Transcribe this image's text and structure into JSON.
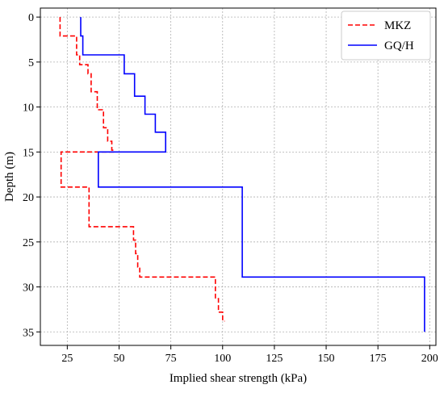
{
  "chart_data": {
    "type": "line",
    "title": "",
    "xlabel": "Implied shear strength (kPa)",
    "ylabel": "Depth (m)",
    "xlim": [
      12,
      203
    ],
    "ylim": [
      -1.0,
      36.5
    ],
    "y_inverted": true,
    "xticks": [
      25,
      50,
      75,
      100,
      125,
      150,
      175,
      200
    ],
    "yticks": [
      0,
      5,
      10,
      15,
      20,
      25,
      30,
      35
    ],
    "grid": true,
    "legend_position": "top-right",
    "series": [
      {
        "name": "MKZ",
        "color": "#ff0000",
        "style": "dashed",
        "x": [
          21.5,
          21.5,
          29.5,
          29.5,
          31,
          31,
          35,
          35,
          36.5,
          36.5,
          39.5,
          39.5,
          42.5,
          42.5,
          44.5,
          44.5,
          46.5,
          46.5,
          47.5,
          47.5,
          22,
          22,
          35.5,
          35.5,
          57,
          57,
          58,
          58,
          59,
          59,
          60,
          60,
          96.5,
          96.5,
          98,
          98,
          100,
          100,
          101
        ],
        "y": [
          0,
          2.1,
          2.1,
          4.2,
          4.2,
          5.3,
          5.3,
          6.3,
          6.3,
          8.3,
          8.3,
          10.3,
          10.3,
          12.3,
          12.3,
          13.8,
          13.8,
          14.8,
          14.8,
          15.0,
          15.0,
          18.9,
          18.9,
          23.3,
          23.3,
          24.8,
          24.8,
          26.3,
          26.3,
          27.8,
          27.8,
          28.9,
          28.9,
          31.3,
          31.3,
          32.8,
          32.8,
          33.8,
          33.8
        ]
      },
      {
        "name": "GQ/H",
        "color": "#0000ff",
        "style": "solid",
        "x": [
          31.5,
          31.5,
          32.5,
          32.5,
          33.5,
          33.5,
          52.5,
          52.5,
          57.5,
          57.5,
          62.5,
          62.5,
          67.5,
          67.5,
          72.5,
          72.5,
          40,
          40,
          109.5,
          109.5,
          197.5,
          197.5
        ],
        "y": [
          0,
          2.1,
          2.1,
          4.2,
          4.2,
          4.2,
          4.2,
          6.3,
          6.3,
          8.8,
          8.8,
          10.8,
          10.8,
          12.8,
          12.8,
          15.0,
          15.0,
          18.9,
          18.9,
          28.9,
          28.9,
          35
        ]
      }
    ]
  }
}
